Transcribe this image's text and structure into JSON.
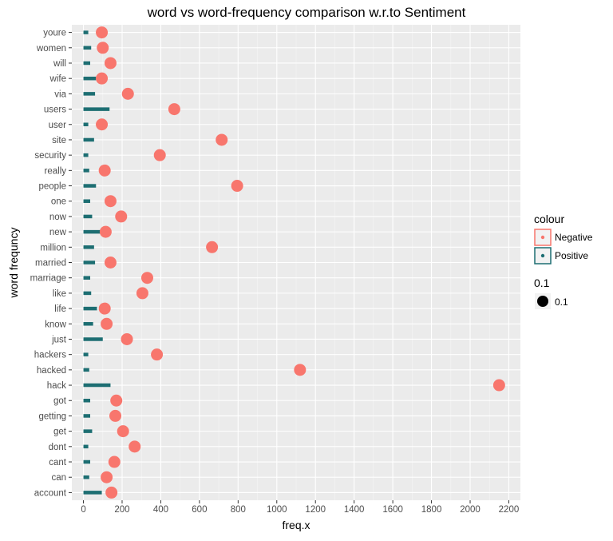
{
  "chart_data": {
    "type": "scatter",
    "title": "word vs word-frequency comparison w.r.to Sentiment",
    "xlabel": "freq.x",
    "ylabel": "word frequncy",
    "xlim": [
      -60,
      2260
    ],
    "xticks": [
      0,
      200,
      400,
      600,
      800,
      1000,
      1200,
      1400,
      1600,
      1800,
      2000,
      2200
    ],
    "grid": true,
    "legend_position": "right",
    "categories": [
      "account",
      "can",
      "cant",
      "dont",
      "get",
      "getting",
      "got",
      "hack",
      "hacked",
      "hackers",
      "just",
      "know",
      "life",
      "like",
      "marriage",
      "married",
      "million",
      "new",
      "now",
      "one",
      "people",
      "really",
      "security",
      "site",
      "user",
      "users",
      "via",
      "wife",
      "will",
      "women",
      "youre"
    ],
    "series": [
      {
        "name": "Negative",
        "mark": "point",
        "color": "#F8766D",
        "values": [
          145,
          120,
          160,
          265,
          205,
          165,
          170,
          2150,
          1120,
          380,
          225,
          120,
          110,
          305,
          330,
          140,
          665,
          115,
          195,
          140,
          795,
          110,
          395,
          715,
          95,
          470,
          230,
          95,
          140,
          100,
          95
        ]
      },
      {
        "name": "Positive",
        "mark": "segment",
        "color": "#1D6E72",
        "values": [
          95,
          30,
          35,
          25,
          45,
          35,
          35,
          140,
          30,
          25,
          100,
          50,
          70,
          40,
          35,
          60,
          55,
          90,
          45,
          35,
          65,
          30,
          25,
          55,
          25,
          135,
          60,
          65,
          35,
          40,
          25
        ]
      }
    ],
    "legend": {
      "colour_title": "colour",
      "entries": [
        "Negative",
        "Positive"
      ],
      "size_title": "0.1",
      "size_label": "0.1"
    }
  }
}
